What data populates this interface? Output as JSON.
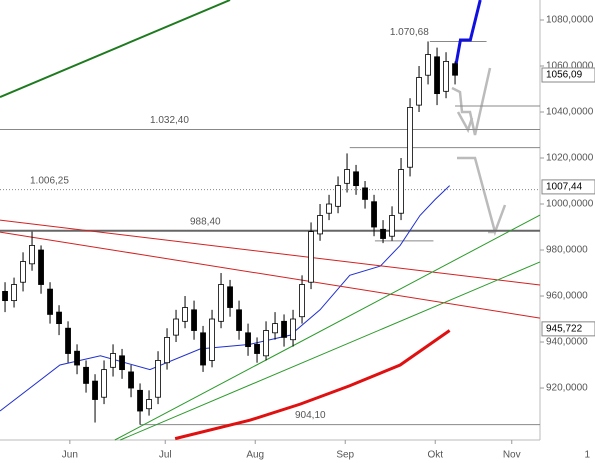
{
  "chart_data": {
    "type": "candlestick",
    "x": [
      0,
      1,
      2,
      3,
      4,
      5,
      6,
      7,
      8,
      9,
      10,
      11,
      12,
      13,
      14,
      15,
      16,
      17,
      18,
      19,
      20,
      21,
      22,
      23,
      24,
      25,
      26,
      27,
      28,
      29,
      30,
      31,
      32,
      33,
      34,
      35,
      36,
      37,
      38,
      39,
      40,
      41,
      42,
      43,
      44,
      45,
      46,
      47,
      48,
      49,
      50
    ],
    "open": [
      962,
      958,
      966,
      974,
      980,
      963,
      953,
      946,
      936,
      929,
      923,
      916,
      929,
      934,
      927,
      919,
      911,
      916,
      931,
      943,
      949,
      954,
      944,
      932,
      949,
      964,
      954,
      944,
      939,
      934,
      944,
      949,
      941,
      951,
      966,
      987,
      996,
      999,
      1009,
      1014,
      1007,
      1001,
      989,
      986,
      996,
      1016,
      1043,
      1056,
      1064,
      1049,
      1061
    ],
    "high": [
      966,
      968,
      979,
      988,
      982,
      966,
      956,
      949,
      939,
      932,
      926,
      932,
      939,
      937,
      930,
      922,
      919,
      936,
      946,
      954,
      960,
      958,
      947,
      954,
      970,
      967,
      958,
      948,
      942,
      949,
      953,
      952,
      954,
      969,
      992,
      1000,
      1004,
      1012,
      1022,
      1017,
      1010,
      1004,
      993,
      999,
      1020,
      1046,
      1060,
      1070.68,
      1068,
      1066,
      1062
    ],
    "low": [
      953,
      955,
      962,
      971,
      961,
      948,
      943,
      931,
      926,
      918,
      905,
      913,
      925,
      924,
      916,
      904.1,
      908,
      913,
      928,
      940,
      946,
      941,
      927,
      929,
      946,
      951,
      941,
      934,
      931,
      932,
      941,
      938,
      938,
      948,
      963,
      984,
      993,
      996,
      1005,
      1004,
      998,
      986,
      983,
      984,
      993,
      1012,
      1040,
      1052,
      1043,
      1046,
      1052
    ],
    "close": [
      958,
      965,
      975,
      982,
      965,
      952,
      948,
      935,
      930,
      922,
      915,
      928,
      935,
      928,
      920,
      910,
      915,
      932,
      942,
      950,
      955,
      945,
      930,
      950,
      965,
      955,
      945,
      938,
      935,
      945,
      948,
      942,
      950,
      965,
      988,
      995,
      1000,
      1008,
      1015,
      1008,
      1002,
      990,
      985,
      995,
      1015,
      1042,
      1055,
      1065,
      1048,
      1062,
      1056
    ],
    "lines": [
      {
        "color": "#1f2fd0",
        "x": [
          -0.56,
          6.1,
          10.6,
          16.1,
          21.7,
          27.2,
          31.7,
          35,
          38.3,
          41.7,
          43.9,
          46.1,
          47.8,
          49.4
        ],
        "y": [
          910,
          930,
          934,
          928,
          937,
          939,
          943,
          954,
          969,
          973,
          982,
          995,
          1002,
          1008
        ]
      },
      {
        "color": "#e01010",
        "x": [
          18.9,
          27.2,
          32.8,
          38.3,
          43.9,
          49.4
        ],
        "y": [
          898,
          906,
          913,
          921,
          930,
          945
        ]
      },
      {
        "color": "#d42020",
        "x": [
          -0.56,
          59.44
        ],
        "y": [
          993,
          964.8
        ]
      },
      {
        "color": "#d42020",
        "x": [
          -0.56,
          59.44
        ],
        "y": [
          987.8,
          950.4
        ]
      },
      {
        "color": "#2a9a2a",
        "x": [
          12.2,
          59.44
        ],
        "y": [
          897.4,
          995.2
        ]
      },
      {
        "color": "#2a9a2a",
        "x": [
          12.8,
          59.44
        ],
        "y": [
          897.4,
          974.8
        ]
      },
      {
        "color": "#1e7a1e",
        "x": [
          -0.56,
          25
        ],
        "y": [
          1046.5,
          1088.7
        ]
      },
      {
        "color": "#1010e0",
        "x": [
          50,
          50.6,
          51.7,
          52.8
        ],
        "y": [
          1058.3,
          1071.3,
          1071.3,
          1088.7
        ]
      }
    ],
    "levels": [
      {
        "value": 1070.68,
        "label": "1.070,68",
        "x": [
          47.2,
          53.5
        ]
      },
      {
        "value": 1042.6,
        "x": [
          50,
          59.44
        ]
      },
      {
        "value": 1032.4,
        "label": "1.032,40",
        "x": [
          -0.56,
          59.44
        ]
      },
      {
        "value": 1024.5,
        "x": [
          38.3,
          59.44
        ]
      },
      {
        "value": 1006.25,
        "label": "1.006,25",
        "x": [
          -0.56,
          59.44
        ]
      },
      {
        "value": 988.4,
        "label": "988,40",
        "x": [
          -0.56,
          59.44
        ]
      },
      {
        "value": 984,
        "x": [
          41.1,
          47.6
        ]
      },
      {
        "value": 904.1,
        "label": "904,10",
        "x": [
          15,
          59.44
        ]
      }
    ],
    "price_tags": [
      {
        "value": 1056.09,
        "label": "1056,09"
      },
      {
        "value": 1007.44,
        "label": "1007,44"
      },
      {
        "value": 945.722,
        "label": "945,722"
      }
    ],
    "xlim": [
      -0.56,
      59.44
    ],
    "ylim": [
      897.4,
      1088.7
    ],
    "xticks": [
      {
        "value": 7.2,
        "label": "Jun"
      },
      {
        "value": 17.8,
        "label": "Jul"
      },
      {
        "value": 27.8,
        "label": "Aug"
      },
      {
        "value": 37.8,
        "label": "Sep"
      },
      {
        "value": 47.8,
        "label": "Okt"
      },
      {
        "value": 56.3,
        "label": "Nov"
      }
    ],
    "yticks": [
      {
        "value": 920,
        "label": "920,0000"
      },
      {
        "value": 940,
        "label": "940,0000"
      },
      {
        "value": 960,
        "label": "960,0000"
      },
      {
        "value": 980,
        "label": "980,0000"
      },
      {
        "value": 1000,
        "label": "1000,0000"
      },
      {
        "value": 1020,
        "label": "1020,0000"
      },
      {
        "value": 1040,
        "label": "1040,0000"
      },
      {
        "value": 1060,
        "label": "1060,0000"
      },
      {
        "value": 1080,
        "label": "1080,0000"
      }
    ],
    "corner_text": "1"
  }
}
